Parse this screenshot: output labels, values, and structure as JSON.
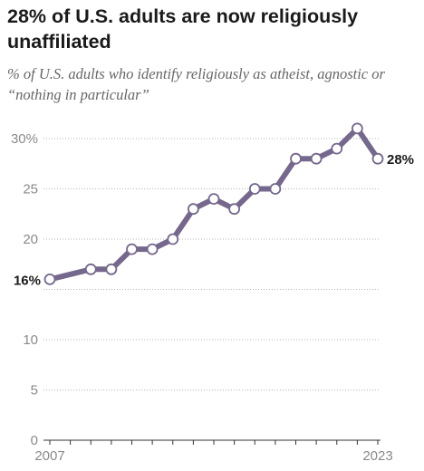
{
  "chart_data": {
    "type": "line",
    "title": "28% of U.S. adults are now religiously unaffiliated",
    "subtitle": "% of U.S. adults who identify religiously as atheist, agnostic or “nothing in particular”",
    "x_tick_labels": [
      "2007",
      "2023"
    ],
    "y_ticks": [
      {
        "value": 30,
        "label": "30%"
      },
      {
        "value": 25,
        "label": "25"
      },
      {
        "value": 20,
        "label": "20"
      },
      {
        "value": 15,
        "label": ""
      },
      {
        "value": 10,
        "label": "10"
      },
      {
        "value": 5,
        "label": "5"
      },
      {
        "value": 0,
        "label": "0"
      }
    ],
    "ylim": [
      0,
      30
    ],
    "xlim": [
      2007,
      2023
    ],
    "grid": true,
    "series": [
      {
        "x": [
          2007,
          2009,
          2010,
          2011,
          2012,
          2013,
          2014,
          2015,
          2016,
          2017,
          2018,
          2019,
          2020,
          2021,
          2022,
          2023
        ],
        "values": [
          16,
          17,
          17,
          19,
          19,
          20,
          23,
          24,
          23,
          25,
          25,
          28,
          28,
          29,
          31,
          28
        ],
        "color": "#75688c"
      }
    ],
    "labels": {
      "start": "16%",
      "end": "28%"
    }
  }
}
